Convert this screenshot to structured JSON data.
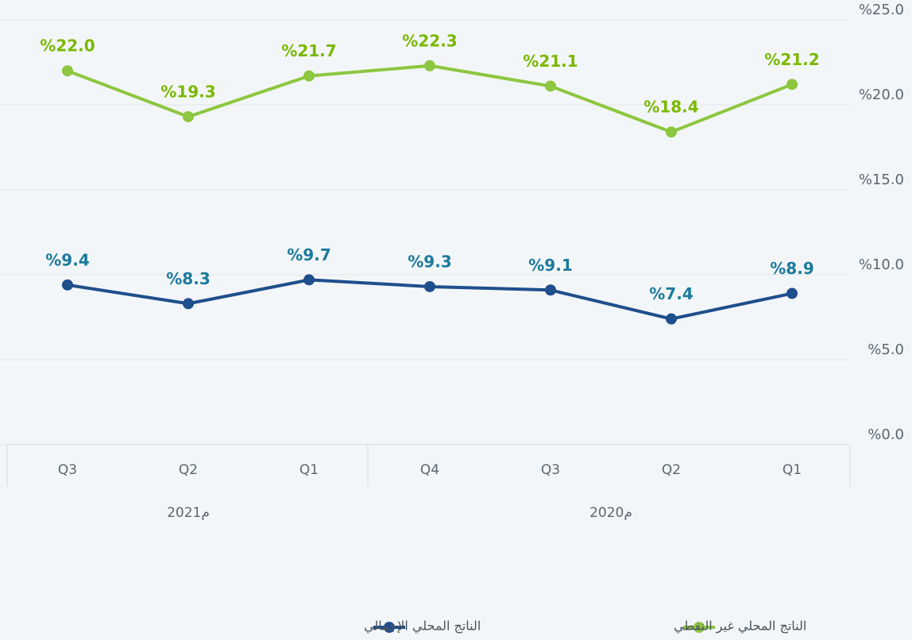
{
  "chart_data": {
    "type": "line",
    "categories": [
      "Q3",
      "Q2",
      "Q1",
      "Q4",
      "Q3",
      "Q2",
      "Q1"
    ],
    "group_labels": [
      "2021م",
      "2020م"
    ],
    "series": [
      {
        "name": "الناتج المحلي غير النفطي",
        "color": "#8dc63f",
        "label_color": "#7ab800",
        "values": [
          22.0,
          19.3,
          21.7,
          22.3,
          21.1,
          18.4,
          21.2
        ],
        "value_labels": [
          "%22.0",
          "%19.3",
          "%21.7",
          "%22.3",
          "%21.1",
          "%18.4",
          "%21.2"
        ]
      },
      {
        "name": "الناتج المحلي الإجمالي",
        "color": "#1f4e8c",
        "label_color": "#1b7a9c",
        "values": [
          9.4,
          8.3,
          9.7,
          9.3,
          9.1,
          7.4,
          8.9
        ],
        "value_labels": [
          "%9.4",
          "%8.3",
          "%9.7",
          "%9.3",
          "%9.1",
          "%7.4",
          "%8.9"
        ]
      }
    ],
    "ylim": [
      0,
      25
    ],
    "yticks": [
      {
        "value": 0,
        "label": "%0.0"
      },
      {
        "value": 5,
        "label": "%5.0"
      },
      {
        "value": 10,
        "label": "%10.0"
      },
      {
        "value": 15,
        "label": "%15.0"
      },
      {
        "value": 20,
        "label": "%20.0"
      },
      {
        "value": 25,
        "label": "%25.0"
      }
    ],
    "grid": true
  }
}
